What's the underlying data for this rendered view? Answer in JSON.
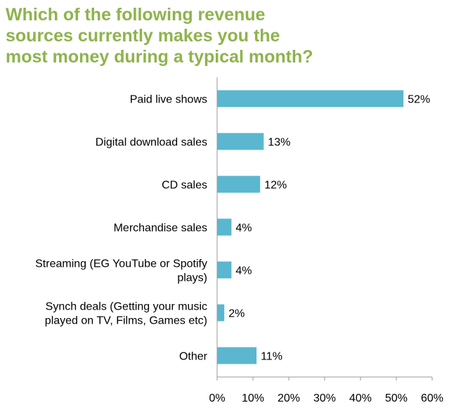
{
  "title_lines": [
    "Which of the following revenue",
    "sources currently makes you the",
    "most money during a typical month?"
  ],
  "colors": {
    "title": "#8fb34d",
    "bar": "#5ab7cf",
    "axis": "#999999"
  },
  "chart_data": {
    "type": "bar",
    "orientation": "horizontal",
    "categories": [
      [
        "Paid live shows"
      ],
      [
        "Digital download sales"
      ],
      [
        "CD sales"
      ],
      [
        "Merchandise sales"
      ],
      [
        "Streaming (EG YouTube or Spotify",
        "plays)"
      ],
      [
        "Synch deals (Getting your music",
        "played on TV, Films, Games etc)"
      ],
      [
        "Other"
      ]
    ],
    "values": [
      52,
      13,
      12,
      4,
      4,
      2,
      11
    ],
    "value_labels": [
      "52%",
      "13%",
      "12%",
      "4%",
      "4%",
      "2%",
      "11%"
    ],
    "xlim": [
      0,
      60
    ],
    "xticks": [
      "0%",
      "10%",
      "20%",
      "30%",
      "40%",
      "50%",
      "60%"
    ],
    "grid": false,
    "legend": "none"
  }
}
